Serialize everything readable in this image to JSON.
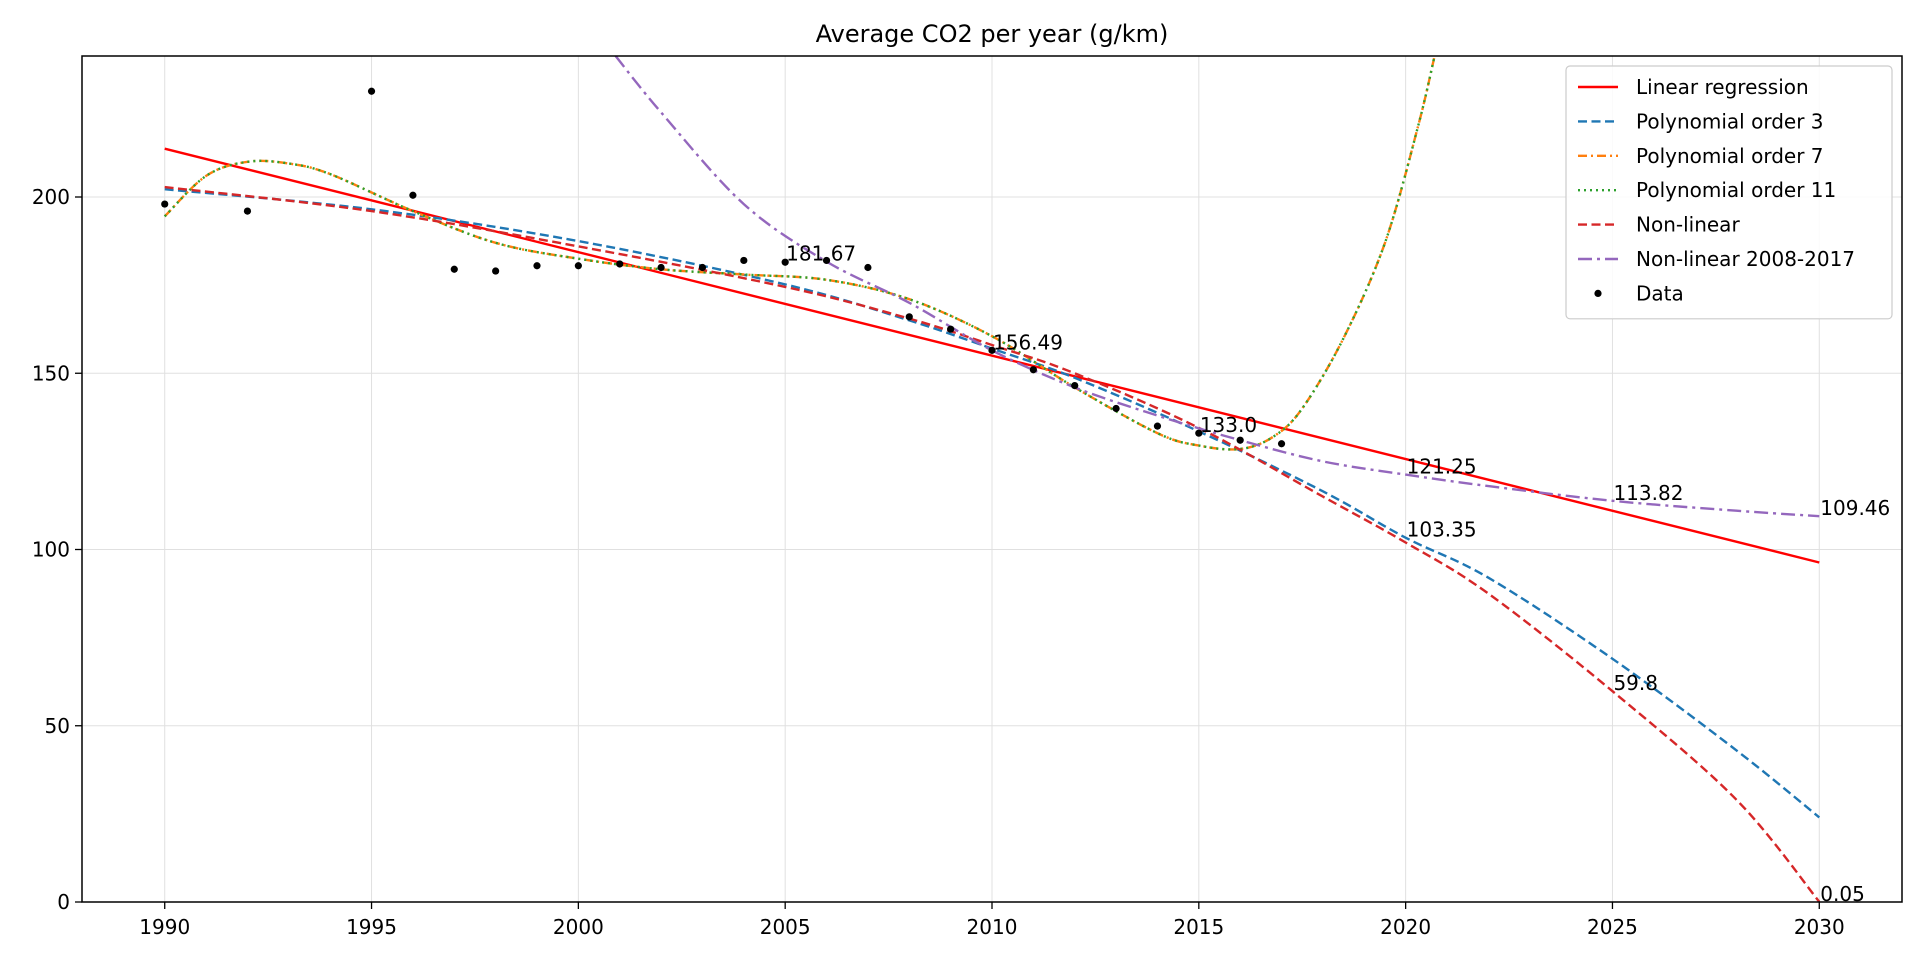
{
  "chart_data": {
    "type": "line",
    "title": "Average CO2 per year (g/km)",
    "xlabel": "",
    "ylabel": "",
    "xlim": [
      1988,
      2032
    ],
    "ylim": [
      0,
      240
    ],
    "x_ticks": [
      "1990",
      "1995",
      "2000",
      "2005",
      "2010",
      "2015",
      "2020",
      "2025",
      "2030"
    ],
    "y_ticks": [
      "0",
      "50",
      "100",
      "150",
      "200"
    ],
    "grid": true,
    "legend_position": "top-right",
    "colors": {
      "linear": "#ff0000",
      "poly3": "#1f77b4",
      "poly7": "#ff7f0e",
      "poly11": "#2ca02c",
      "nonlinear": "#d62728",
      "nonlinear2008": "#9467bd",
      "data": "#000000"
    },
    "series": [
      {
        "name": "Linear regression",
        "key": "linear",
        "style": "solid",
        "x": [
          1990,
          2030
        ],
        "y": [
          213.7,
          96.3
        ]
      },
      {
        "name": "Polynomial order 3",
        "key": "poly3",
        "style": "dashed",
        "x": [
          1990,
          1995,
          2000,
          2005,
          2008,
          2010,
          2012,
          2015,
          2018,
          2020,
          2022,
          2025,
          2028,
          2030
        ],
        "y": [
          202.2,
          196.5,
          187.5,
          175.2,
          165.0,
          157.0,
          148.7,
          133.5,
          116.5,
          103.35,
          92.0,
          69.0,
          43.0,
          24.0
        ]
      },
      {
        "name": "Polynomial order 7",
        "key": "poly7",
        "style": "dashdot",
        "x": [
          1990,
          1991,
          1992,
          1993,
          1994,
          1996,
          1998,
          2000,
          2002,
          2004,
          2006,
          2008,
          2010,
          2012,
          2014,
          2015,
          2016,
          2016.8,
          2017.5,
          2018.5,
          2019.5,
          2020.3,
          2020.7
        ],
        "y": [
          194.5,
          206.0,
          210.0,
          209.5,
          206.5,
          196.0,
          187.0,
          182.5,
          179.5,
          178.0,
          176.5,
          171.0,
          160.5,
          146.0,
          133.0,
          129.5,
          128.5,
          132.0,
          140.0,
          160.0,
          187.0,
          220.0,
          240.0
        ]
      },
      {
        "name": "Polynomial order 11",
        "key": "poly11",
        "style": "dotted",
        "x": [
          1990,
          1991,
          1992,
          1993,
          1994,
          1996,
          1998,
          2000,
          2002,
          2004,
          2006,
          2008,
          2010,
          2012,
          2014,
          2015,
          2016,
          2016.8,
          2017.5,
          2018.5,
          2019.5,
          2020.3,
          2020.7
        ],
        "y": [
          194.5,
          206.0,
          210.0,
          209.5,
          206.5,
          196.0,
          187.0,
          182.5,
          179.5,
          178.0,
          176.5,
          171.0,
          160.5,
          146.0,
          133.0,
          129.5,
          128.5,
          132.0,
          140.0,
          160.0,
          187.0,
          220.0,
          240.0
        ]
      },
      {
        "name": "Non-linear",
        "key": "nonlinear",
        "style": "dashed",
        "x": [
          1990,
          1995,
          2000,
          2005,
          2008,
          2010,
          2012,
          2015,
          2018,
          2020,
          2022,
          2025,
          2028,
          2030
        ],
        "y": [
          202.8,
          196.0,
          186.0,
          174.5,
          165.5,
          158.0,
          150.0,
          134.5,
          115.0,
          102.0,
          87.5,
          59.8,
          29.0,
          0.05
        ]
      },
      {
        "name": "Non-linear 2008-2017",
        "key": "nonlinear2008",
        "style": "dashdot-long",
        "x": [
          2000.9,
          2002,
          2004,
          2006,
          2008,
          2010,
          2012,
          2014,
          2016,
          2018,
          2020,
          2022,
          2025,
          2028,
          2030
        ],
        "y": [
          240.0,
          224.0,
          198.0,
          181.67,
          170.0,
          156.49,
          146.0,
          138.0,
          131.0,
          125.0,
          121.25,
          118.0,
          113.82,
          111.0,
          109.46
        ]
      }
    ],
    "data_points": {
      "name": "Data",
      "x": [
        1990,
        1992,
        1995,
        1996,
        1997,
        1998,
        1999,
        2000,
        2001,
        2002,
        2003,
        2004,
        2005,
        2006,
        2007,
        2008,
        2009,
        2010,
        2011,
        2012,
        2013,
        2014,
        2015,
        2016,
        2017
      ],
      "y": [
        198,
        196,
        230,
        200.5,
        179.5,
        179,
        180.5,
        180.5,
        181,
        180,
        180,
        182,
        181.5,
        182,
        180,
        166,
        162.5,
        156.5,
        151,
        146.5,
        140,
        135,
        133,
        131,
        130
      ]
    },
    "annotations": [
      {
        "text": "181.67",
        "x": 2005,
        "y": 181.67
      },
      {
        "text": "156.49",
        "x": 2010,
        "y": 156.49
      },
      {
        "text": "133.0",
        "x": 2015,
        "y": 133.0
      },
      {
        "text": "121.25",
        "x": 2020,
        "y": 121.25
      },
      {
        "text": "103.35",
        "x": 2020,
        "y": 103.35
      },
      {
        "text": "113.82",
        "x": 2025,
        "y": 113.82
      },
      {
        "text": "59.8",
        "x": 2025,
        "y": 59.8
      },
      {
        "text": "109.46",
        "x": 2030,
        "y": 109.46
      },
      {
        "text": "0.05",
        "x": 2030,
        "y": 0.05
      }
    ]
  }
}
